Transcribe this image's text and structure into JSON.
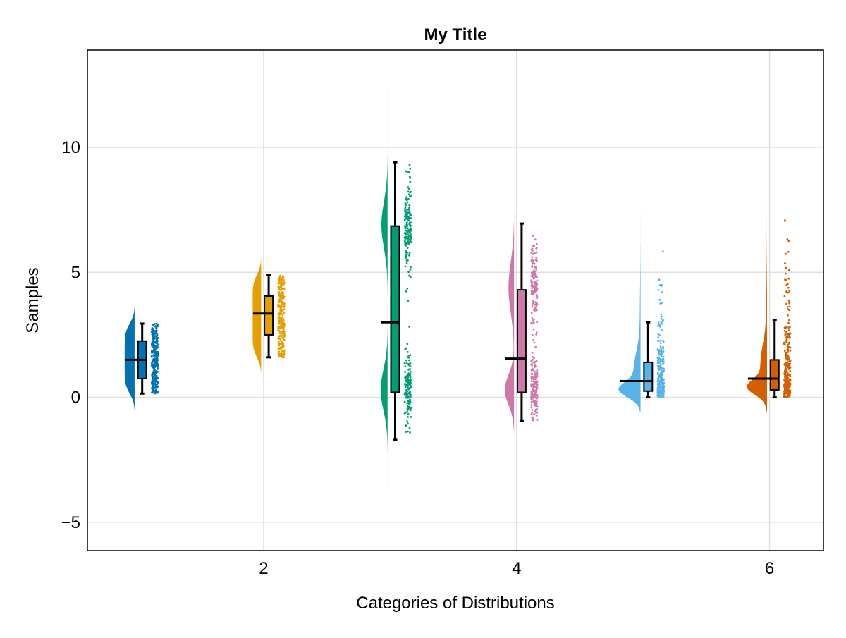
{
  "chart_data": {
    "type": "raincloud",
    "title": "My Title",
    "xlabel": "Categories of Distributions",
    "ylabel": "Samples",
    "xlim": [
      0.607,
      6.426
    ],
    "ylim": [
      -6.13,
      13.89
    ],
    "xticks": [
      2,
      4,
      6
    ],
    "xtick_labels": [
      "2",
      "4",
      "6"
    ],
    "yticks": [
      -5,
      0,
      5,
      10
    ],
    "ytick_labels": [
      "−5",
      "0",
      "5",
      "10"
    ],
    "grid": true,
    "categories": [
      {
        "x": 1,
        "color": "#0072b2",
        "median": 1.5,
        "q1": 0.75,
        "q3": 2.25,
        "whisker_low": 0.15,
        "whisker_high": 2.95,
        "points_range": [
          0.15,
          2.95
        ],
        "violin_range": [
          -0.5,
          3.6
        ],
        "distribution": [
          {
            "kind": "uniform",
            "lo": 0.15,
            "hi": 2.95,
            "w": 1
          }
        ]
      },
      {
        "x": 2,
        "color": "#e69f00",
        "median": 3.35,
        "q1": 2.5,
        "q3": 4.05,
        "whisker_low": 1.6,
        "whisker_high": 4.9,
        "points_range": [
          1.6,
          4.9
        ],
        "violin_range": [
          1.0,
          5.6
        ],
        "distribution": [
          {
            "kind": "uniform",
            "lo": 1.6,
            "hi": 4.9,
            "w": 1
          }
        ]
      },
      {
        "x": 3,
        "color": "#009e73",
        "median": 3.0,
        "q1": 0.2,
        "q3": 6.85,
        "whisker_low": -1.7,
        "whisker_high": 9.4,
        "points_range": [
          -1.7,
          9.4
        ],
        "violin_range": [
          -3.6,
          12.4
        ],
        "distribution": [
          {
            "kind": "normal",
            "mu": 0.3,
            "sd": 0.8,
            "w": 0.5
          },
          {
            "kind": "normal",
            "mu": 6.9,
            "sd": 0.9,
            "w": 0.5
          }
        ]
      },
      {
        "x": 4,
        "color": "#cc79a7",
        "median": 1.55,
        "q1": 0.2,
        "q3": 4.3,
        "whisker_low": -0.95,
        "whisker_high": 6.95,
        "points_range": [
          -0.95,
          6.95
        ],
        "violin_range": [
          -1.7,
          7.5
        ],
        "distribution": [
          {
            "kind": "normal",
            "mu": 0.3,
            "sd": 0.6,
            "w": 0.5
          },
          {
            "kind": "normal",
            "mu": 4.4,
            "sd": 1.0,
            "w": 0.5
          }
        ]
      },
      {
        "x": 5,
        "color": "#56b4e9",
        "median": 0.65,
        "q1": 0.25,
        "q3": 1.4,
        "whisker_low": 0.0,
        "whisker_high": 3.0,
        "points_range": [
          0.0,
          7.2
        ],
        "violin_range": [
          -0.6,
          7.6
        ],
        "distribution": [
          {
            "kind": "normal",
            "mu": 0.3,
            "sd": 0.3,
            "w": 0.5
          },
          {
            "kind": "normal",
            "mu": 1.1,
            "sd": 0.7,
            "w": 0.4
          },
          {
            "kind": "normal",
            "mu": 3.0,
            "sd": 1.5,
            "w": 0.1
          }
        ]
      },
      {
        "x": 6,
        "color": "#d55e00",
        "median": 0.75,
        "q1": 0.3,
        "q3": 1.5,
        "whisker_low": 0.0,
        "whisker_high": 3.1,
        "points_range": [
          0.0,
          7.3
        ],
        "violin_range": [
          -0.6,
          7.9
        ],
        "distribution": [
          {
            "kind": "normal",
            "mu": 0.4,
            "sd": 0.3,
            "w": 0.45
          },
          {
            "kind": "normal",
            "mu": 1.3,
            "sd": 0.8,
            "w": 0.45
          },
          {
            "kind": "normal",
            "mu": 3.3,
            "sd": 1.5,
            "w": 0.1
          }
        ]
      }
    ]
  }
}
